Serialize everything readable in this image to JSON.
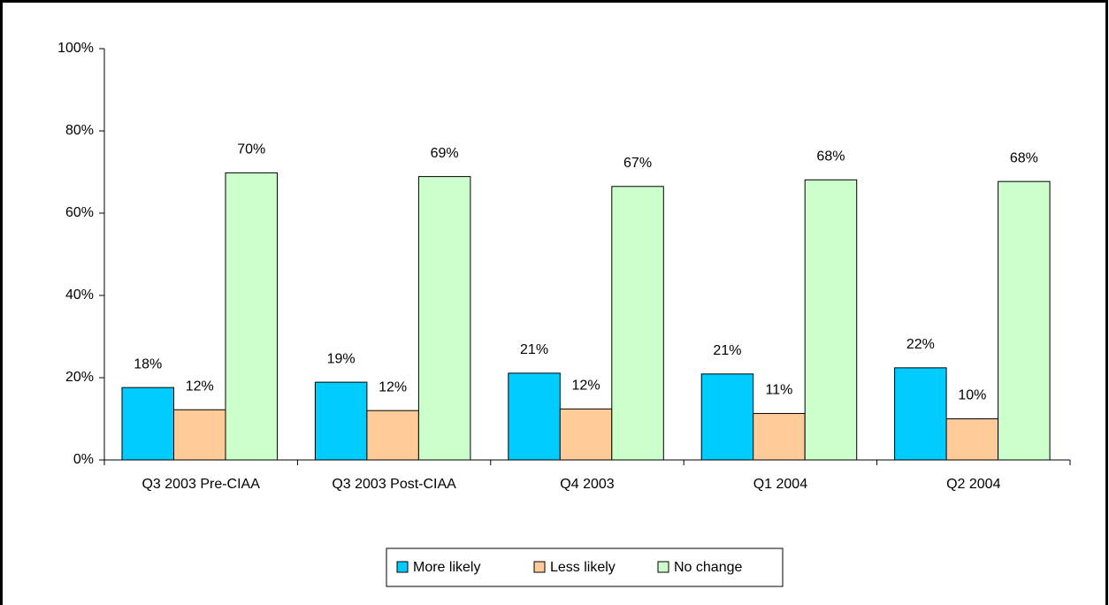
{
  "chart_data": {
    "type": "bar",
    "categories": [
      "Q3 2003 Pre-CIAA",
      "Q3 2003 Post-CIAA",
      "Q4 2003",
      "Q1 2004",
      "Q2 2004"
    ],
    "series": [
      {
        "name": "More likely",
        "color": "#00ccff",
        "values": [
          17.6,
          18.9,
          21.1,
          20.9,
          22.4
        ],
        "value_labels": [
          "18%",
          "19%",
          "21%",
          "21%",
          "22%"
        ]
      },
      {
        "name": "Less likely",
        "color": "#ffcc99",
        "values": [
          12.2,
          12.0,
          12.4,
          11.3,
          10.0
        ],
        "value_labels": [
          "12%",
          "12%",
          "12%",
          "11%",
          "10%"
        ]
      },
      {
        "name": "No change",
        "color": "#ccffcc",
        "values": [
          69.8,
          68.9,
          66.5,
          68.1,
          67.7
        ],
        "value_labels": [
          "70%",
          "69%",
          "67%",
          "68%",
          "68%"
        ]
      }
    ],
    "ylim": [
      0,
      100
    ],
    "yticks": [
      {
        "value": 0,
        "label": "0%"
      },
      {
        "value": 20,
        "label": "20%"
      },
      {
        "value": 40,
        "label": "40%"
      },
      {
        "value": 60,
        "label": "60%"
      },
      {
        "value": 80,
        "label": "80%"
      },
      {
        "value": 100,
        "label": "100%"
      }
    ],
    "grid": false,
    "legend": "bottom"
  }
}
